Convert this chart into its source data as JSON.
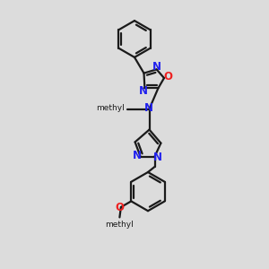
{
  "background_color": "#dcdcdc",
  "bond_color": "#1a1a1a",
  "nitrogen_color": "#2020ee",
  "oxygen_color": "#ee2020",
  "carbon_color": "#1a1a1a",
  "line_width": 1.6,
  "font_size": 8.5,
  "xlim": [
    0,
    10
  ],
  "ylim": [
    0,
    10
  ]
}
